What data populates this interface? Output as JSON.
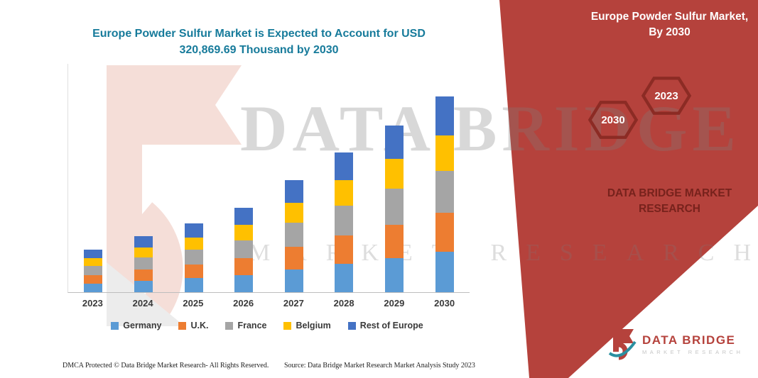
{
  "header": {
    "title_line1": "Europe Powder Sulfur Market is Expected to Account for USD",
    "title_line2": "320,869.69 Thousand by 2030",
    "title_color": "#177b9b"
  },
  "right_panel": {
    "title": "Europe Powder Sulfur Market, By 2030",
    "hexagons": [
      {
        "label": "2030"
      },
      {
        "label": "2023"
      }
    ],
    "brand": "DATA BRIDGE MARKET RESEARCH",
    "bg_color": "#b5423c",
    "hex_border_color": "#8c2b24",
    "brand_text_color": "#77221c"
  },
  "watermark": {
    "line1": "DATA BRIDGE",
    "line2": "MARKET RESEARCH"
  },
  "logo": {
    "name": "DATA BRIDGE",
    "tagline": "MARKET RESEARCH"
  },
  "footer": {
    "dmca": "DMCA Protected © Data Bridge Market Research-  All Rights Reserved.",
    "source": "Source: Data Bridge Market Research  Market Analysis Study 2023"
  },
  "chart_data": {
    "type": "bar",
    "stacked": true,
    "title": "Europe Powder Sulfur Market is Expected to Account for USD 320,869.69 Thousand by 2030",
    "unit": "USD Thousand",
    "categories": [
      "2023",
      "2024",
      "2025",
      "2026",
      "2027",
      "2028",
      "2029",
      "2030"
    ],
    "series": [
      {
        "name": "Germany",
        "color": "#5B9BD5",
        "values": [
          14250,
          18760,
          23020,
          28250,
          37490,
          47010,
          55990,
          65780
        ]
      },
      {
        "name": "U.K.",
        "color": "#ED7D31",
        "values": [
          13900,
          18300,
          22460,
          27560,
          36580,
          45860,
          54620,
          64170
        ]
      },
      {
        "name": "France",
        "color": "#A5A5A5",
        "values": [
          14940,
          19670,
          24140,
          29630,
          39320,
          49300,
          58720,
          68990
        ]
      },
      {
        "name": "Belgium",
        "color": "#FFC000",
        "values": [
          12510,
          16470,
          20210,
          24800,
          32920,
          41270,
          49160,
          57760
        ]
      },
      {
        "name": "Rest of Europe",
        "color": "#4472C4",
        "values": [
          13900,
          18300,
          22470,
          27560,
          36590,
          45860,
          54610,
          64169.69
        ]
      }
    ],
    "totals": [
      69500,
      91500,
      112300,
      137800,
      182900,
      229300,
      273100,
      320869.69
    ],
    "ylim": [
      0,
      375000
    ],
    "grid": false,
    "y_axis_visible": false,
    "legend_position": "bottom"
  }
}
